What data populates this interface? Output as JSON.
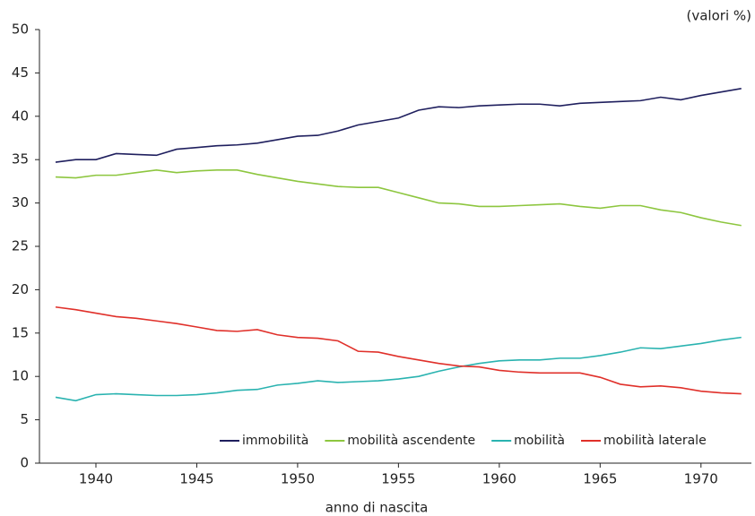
{
  "chart_data": {
    "type": "line",
    "ylabel": "(valori %)",
    "xlabel": "anno di nascita",
    "x": [
      1938,
      1939,
      1940,
      1941,
      1942,
      1943,
      1944,
      1945,
      1946,
      1947,
      1948,
      1949,
      1950,
      1951,
      1952,
      1953,
      1954,
      1955,
      1956,
      1957,
      1958,
      1959,
      1960,
      1961,
      1962,
      1963,
      1964,
      1965,
      1966,
      1967,
      1968,
      1969,
      1970,
      1971,
      1972
    ],
    "series": [
      {
        "name": "immobilità",
        "color": "#1f1f5e",
        "values": [
          34.7,
          35.0,
          35.0,
          35.7,
          35.6,
          35.5,
          36.2,
          36.4,
          36.6,
          36.7,
          36.9,
          37.3,
          37.7,
          37.8,
          38.3,
          39.0,
          39.4,
          39.8,
          40.7,
          41.1,
          41.0,
          41.2,
          41.3,
          41.4,
          41.4,
          41.2,
          41.5,
          41.6,
          41.7,
          41.8,
          42.2,
          41.9,
          42.4,
          42.8,
          43.2
        ]
      },
      {
        "name": "mobilità ascendente",
        "color": "#8dc63f",
        "values": [
          33.0,
          32.9,
          33.2,
          33.2,
          33.5,
          33.8,
          33.5,
          33.7,
          33.8,
          33.8,
          33.3,
          32.9,
          32.5,
          32.2,
          31.9,
          31.8,
          31.8,
          31.2,
          30.6,
          30.0,
          29.9,
          29.6,
          29.6,
          29.7,
          29.8,
          29.9,
          29.6,
          29.4,
          29.7,
          29.7,
          29.2,
          28.9,
          28.3,
          27.8,
          27.4
        ]
      },
      {
        "name": "mobilità",
        "color": "#2ab3b0",
        "values": [
          7.6,
          7.2,
          7.9,
          8.0,
          7.9,
          7.8,
          7.8,
          7.9,
          8.1,
          8.4,
          8.5,
          9.0,
          9.2,
          9.5,
          9.3,
          9.4,
          9.5,
          9.7,
          10.0,
          10.6,
          11.1,
          11.5,
          11.8,
          11.9,
          11.9,
          12.1,
          12.1,
          12.4,
          12.8,
          13.3,
          13.2,
          13.5,
          13.8,
          14.2,
          14.5
        ]
      },
      {
        "name": "mobilità laterale",
        "color": "#e0302a",
        "values": [
          18.0,
          17.7,
          17.3,
          16.9,
          16.7,
          16.4,
          16.1,
          15.7,
          15.3,
          15.2,
          15.4,
          14.8,
          14.5,
          14.4,
          14.1,
          12.9,
          12.8,
          12.3,
          11.9,
          11.5,
          11.2,
          11.1,
          10.7,
          10.5,
          10.4,
          10.4,
          10.4,
          9.9,
          9.1,
          8.8,
          8.9,
          8.7,
          8.3,
          8.1,
          8.0
        ]
      }
    ],
    "xlim": [
      1937.2,
      1972.5
    ],
    "xticks": [
      1940,
      1945,
      1950,
      1955,
      1960,
      1965,
      1970
    ],
    "ylim": [
      0,
      50
    ],
    "yticks": [
      0,
      5,
      10,
      15,
      20,
      25,
      30,
      35,
      40,
      45,
      50
    ],
    "legend": "lower right"
  }
}
